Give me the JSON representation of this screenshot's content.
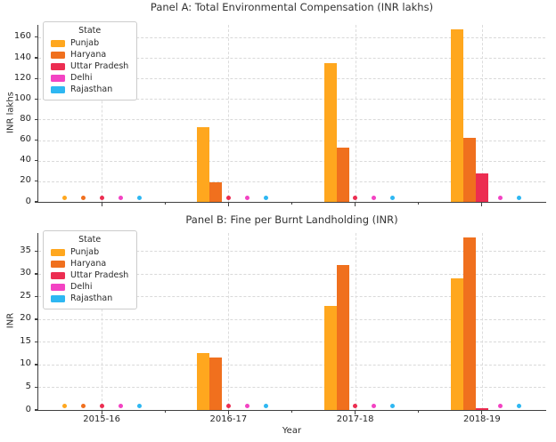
{
  "figure": {
    "background": "#ffffff"
  },
  "chart_data": [
    {
      "type": "bar",
      "panel": "A",
      "title": "Panel A: Total Environmental Compensation (INR lakhs)",
      "xlabel": "",
      "ylabel": "INR lakhs",
      "categories": [
        "2015-16",
        "2016-17",
        "2017-18",
        "2018-19"
      ],
      "x_tick_labels_shown": false,
      "ylim": [
        0,
        172
      ],
      "yticks": [
        0,
        20,
        40,
        60,
        80,
        100,
        120,
        140,
        160
      ],
      "grid": true,
      "legend": {
        "title": "State",
        "position": "upper left"
      },
      "zero_marker": "dot",
      "series": [
        {
          "name": "Punjab",
          "color": "#FFA71E",
          "values": [
            0,
            73,
            135,
            168
          ]
        },
        {
          "name": "Haryana",
          "color": "#F0701E",
          "values": [
            0,
            19,
            53,
            62
          ]
        },
        {
          "name": "Uttar Pradesh",
          "color": "#EC2D51",
          "values": [
            0,
            0,
            0,
            28
          ]
        },
        {
          "name": "Delhi",
          "color": "#F343C3",
          "values": [
            0,
            0,
            0,
            0
          ]
        },
        {
          "name": "Rajasthan",
          "color": "#2EB7F2",
          "values": [
            0,
            0,
            0,
            0
          ]
        }
      ]
    },
    {
      "type": "bar",
      "panel": "B",
      "title": "Panel B: Fine per Burnt Landholding (INR)",
      "xlabel": "Year",
      "ylabel": "INR",
      "categories": [
        "2015-16",
        "2016-17",
        "2017-18",
        "2018-19"
      ],
      "x_tick_labels_shown": true,
      "ylim": [
        0,
        39
      ],
      "yticks": [
        0,
        5,
        10,
        15,
        20,
        25,
        30,
        35
      ],
      "grid": true,
      "legend": {
        "title": "State",
        "position": "upper left"
      },
      "zero_marker": "dot",
      "series": [
        {
          "name": "Punjab",
          "color": "#FFA71E",
          "values": [
            0,
            12.5,
            23,
            29
          ]
        },
        {
          "name": "Haryana",
          "color": "#F0701E",
          "values": [
            0,
            11.5,
            32,
            38
          ]
        },
        {
          "name": "Uttar Pradesh",
          "color": "#EC2D51",
          "values": [
            0,
            0,
            0,
            0.4
          ]
        },
        {
          "name": "Delhi",
          "color": "#F343C3",
          "values": [
            0,
            0,
            0,
            0
          ]
        },
        {
          "name": "Rajasthan",
          "color": "#2EB7F2",
          "values": [
            0,
            0,
            0,
            0
          ]
        }
      ]
    }
  ]
}
